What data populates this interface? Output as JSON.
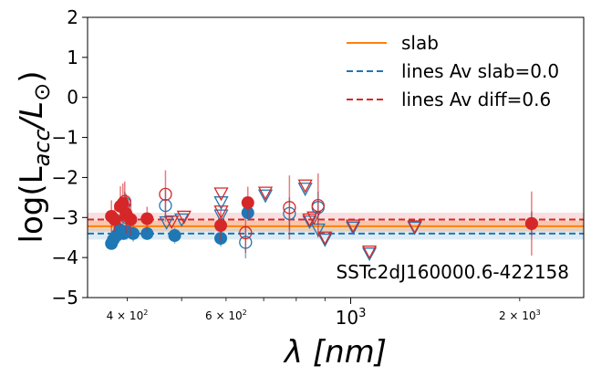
{
  "chart_data": {
    "type": "scatter",
    "title": "",
    "xlabel": "λ [nm]",
    "ylabel_prefix": "log(L",
    "ylabel_sub": "acc",
    "ylabel_mid": "/L",
    "ylabel_sym": "⊙",
    "ylabel_suffix": ")",
    "xscale": "log",
    "xlim": [
      340,
      2600
    ],
    "ylim": [
      -5,
      2
    ],
    "yticks": [
      {
        "value": 2,
        "label": "2"
      },
      {
        "value": 1,
        "label": "1"
      },
      {
        "value": 0,
        "label": "0"
      },
      {
        "value": -1,
        "label": "−1"
      },
      {
        "value": -2,
        "label": "−2"
      },
      {
        "value": -3,
        "label": "−3"
      },
      {
        "value": -4,
        "label": "−4"
      },
      {
        "value": -5,
        "label": "−5"
      }
    ],
    "xticks_major": [
      {
        "value": 1000,
        "base": "10",
        "exp": "3",
        "mult": ""
      }
    ],
    "xticks_minor_labeled": [
      {
        "value": 400,
        "mult": "4 × ",
        "base": "10",
        "exp": "2"
      },
      {
        "value": 600,
        "mult": "6 × ",
        "base": "10",
        "exp": "2"
      },
      {
        "value": 2000,
        "mult": "2 × ",
        "base": "10",
        "exp": "3"
      }
    ],
    "xticks_minor": [
      400,
      500,
      600,
      700,
      800,
      900,
      2000
    ],
    "annotation": "SSTc2dJ160000.6-422158",
    "legend": [
      {
        "label": "slab",
        "color": "#ff7f0e",
        "style": "solid"
      },
      {
        "label": "lines Av slab=0.0",
        "color": "#1f77b4",
        "style": "dashed"
      },
      {
        "label": "lines Av diff=0.6",
        "color": "#d62728",
        "style": "dashed"
      }
    ],
    "colors": {
      "slab": "#ff7f0e",
      "blue": "#1f77b4",
      "red": "#d62728"
    },
    "lines": {
      "slab": {
        "y": -3.22,
        "band": [
          -3.35,
          -3.08
        ]
      },
      "blue": {
        "y": -3.4,
        "band": [
          -3.55,
          -3.25
        ]
      },
      "red": {
        "y": -3.05,
        "band": [
          -3.22,
          -2.88
        ]
      }
    },
    "series": [
      {
        "name": "blue_filled",
        "color": "#1f77b4",
        "marker": "circle_filled",
        "points": [
          [
            375,
            -3.65,
            0.15
          ],
          [
            378,
            -3.55,
            0.15
          ],
          [
            383,
            -3.45,
            0.2
          ],
          [
            388,
            -3.3,
            0.15
          ],
          [
            394,
            -3.4,
            0.15
          ],
          [
            399,
            -3.35,
            0.2
          ],
          [
            410,
            -3.4,
            0.2
          ],
          [
            434,
            -3.4,
            0.15
          ],
          [
            486,
            -3.45,
            0.2
          ],
          [
            587,
            -3.52,
            0.2
          ],
          [
            656,
            -2.88,
            0.2
          ],
          [
            2100,
            -3.15,
            0.3
          ]
        ]
      },
      {
        "name": "red_filled",
        "color": "#d62728",
        "marker": "circle_filled",
        "points": [
          [
            375,
            -2.97,
            0.4
          ],
          [
            380,
            -3.05,
            0.3
          ],
          [
            389,
            -2.72,
            0.5
          ],
          [
            393,
            -2.65,
            0.5
          ],
          [
            398,
            -2.9,
            0.5
          ],
          [
            406,
            -3.05,
            0.4
          ],
          [
            434,
            -3.03,
            0.3
          ],
          [
            587,
            -3.2,
            0.4
          ],
          [
            656,
            -2.63,
            0.4
          ],
          [
            2100,
            -3.15,
            0.8
          ]
        ]
      },
      {
        "name": "blue_open",
        "color": "#1f77b4",
        "marker": "circle_open",
        "points": [
          [
            396,
            -2.65,
            0.3
          ],
          [
            399,
            -3.0,
            0.3
          ],
          [
            468,
            -2.7,
            0.4
          ],
          [
            650,
            -3.62,
            0.4
          ],
          [
            778,
            -2.9,
            0.4
          ],
          [
            875,
            -2.75,
            0.4
          ]
        ]
      },
      {
        "name": "red_open",
        "color": "#d62728",
        "marker": "circle_open",
        "points": [
          [
            396,
            -2.6,
            0.5
          ],
          [
            399,
            -2.95,
            0.5
          ],
          [
            468,
            -2.42,
            0.6
          ],
          [
            650,
            -3.38,
            0.5
          ],
          [
            778,
            -2.75,
            0.8
          ],
          [
            875,
            -2.7,
            0.8
          ]
        ]
      },
      {
        "name": "blue_tri",
        "color": "#1f77b4",
        "marker": "triangle_open",
        "points": [
          [
            470,
            -3.12
          ],
          [
            500,
            -3.05
          ],
          [
            588,
            -2.62
          ],
          [
            588,
            -2.95
          ],
          [
            705,
            -2.45
          ],
          [
            830,
            -2.28
          ],
          [
            845,
            -3.1
          ],
          [
            875,
            -3.3
          ],
          [
            900,
            -3.55
          ],
          [
            1010,
            -3.25
          ],
          [
            1080,
            -3.9
          ],
          [
            1300,
            -3.25
          ]
        ]
      },
      {
        "name": "red_tri",
        "color": "#d62728",
        "marker": "triangle_open",
        "points": [
          [
            480,
            -3.1
          ],
          [
            505,
            -2.98
          ],
          [
            588,
            -2.4
          ],
          [
            588,
            -2.85
          ],
          [
            705,
            -2.38
          ],
          [
            830,
            -2.2
          ],
          [
            845,
            -3.05
          ],
          [
            860,
            -3.0
          ],
          [
            900,
            -3.5
          ],
          [
            1010,
            -3.2
          ],
          [
            1080,
            -3.85
          ],
          [
            1300,
            -3.22
          ]
        ]
      }
    ]
  }
}
